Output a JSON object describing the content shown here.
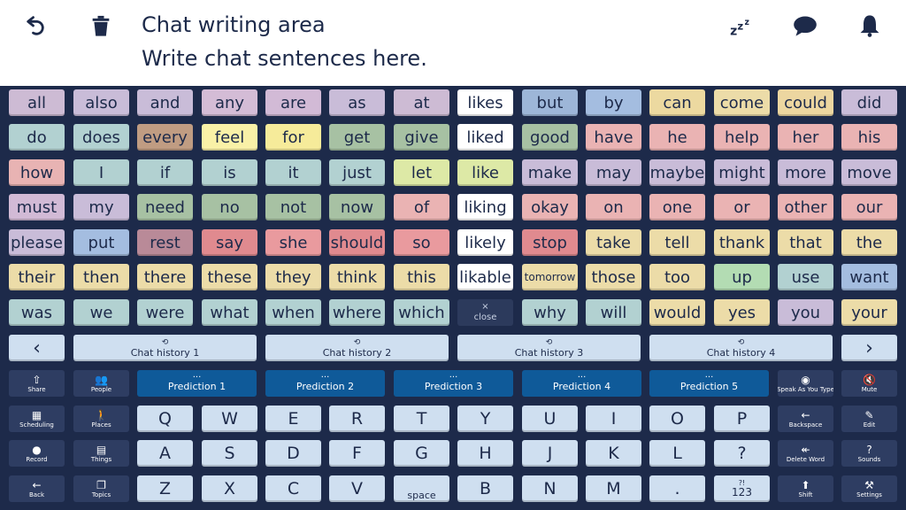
{
  "topbar": {
    "title": "Chat writing area",
    "text": "Write chat sentences here.",
    "icons": [
      "undo-icon",
      "trash-icon",
      "sleep-icon",
      "speech-bubble-icon",
      "bell-icon"
    ],
    "icon_color": "#1d2a4a"
  },
  "word_grid": {
    "rows": [
      [
        "all",
        "also",
        "and",
        "any",
        "are",
        "as",
        "at",
        "likes",
        "but",
        "by",
        "can",
        "come",
        "could",
        "did"
      ],
      [
        "do",
        "does",
        "every",
        "feel",
        "for",
        "get",
        "give",
        "liked",
        "good",
        "have",
        "he",
        "help",
        "her",
        "his"
      ],
      [
        "how",
        "I",
        "if",
        "is",
        "it",
        "just",
        "let",
        "like",
        "make",
        "may",
        "maybe",
        "might",
        "more",
        "move"
      ],
      [
        "must",
        "my",
        "need",
        "no",
        "not",
        "now",
        "of",
        "liking",
        "okay",
        "on",
        "one",
        "or",
        "other",
        "our"
      ],
      [
        "please",
        "put",
        "rest",
        "say",
        "she",
        "should",
        "so",
        "likely",
        "stop",
        "take",
        "tell",
        "thank",
        "that",
        "the"
      ],
      [
        "their",
        "then",
        "there",
        "these",
        "they",
        "think",
        "this",
        "likable",
        "tomorrow",
        "those",
        "too",
        "up",
        "use",
        "want"
      ],
      [
        "was",
        "we",
        "were",
        "what",
        "when",
        "where",
        "which",
        "",
        "why",
        "will",
        "would",
        "yes",
        "you",
        "your"
      ]
    ],
    "colors": [
      [
        "#cdbbd4",
        "#c9bcd8",
        "#c9bcd8",
        "#d4bcd6",
        "#d2bad6",
        "#c9bcd8",
        "#cdbbd4",
        "#ffffff",
        "#9db6d8",
        "#a4bde0",
        "#ecd9a0",
        "#ecdca8",
        "#ecd6a0",
        "#c9bcd8"
      ],
      [
        "#b2d1d1",
        "#b2d1d1",
        "#c09c82",
        "#f9f1a7",
        "#f6eb9a",
        "#a7c1a3",
        "#a7c1a3",
        "#ffffff",
        "#a7c1a3",
        "#eab3b3",
        "#eab3b3",
        "#eab3b3",
        "#eab3b3",
        "#eab3b3"
      ],
      [
        "#e8b3b3",
        "#b2d1d1",
        "#b2d1d1",
        "#b2d1d1",
        "#b2d1d1",
        "#b2d1d1",
        "#dde9a6",
        "#dde9a6",
        "#c9bcd8",
        "#c9bcd8",
        "#c9bcd8",
        "#c9bcd8",
        "#c9bcd8",
        "#c9bcd8"
      ],
      [
        "#d2bad6",
        "#c9bcd8",
        "#a7c1a3",
        "#a7c1a3",
        "#a7c1a3",
        "#a7c1a3",
        "#eab3b3",
        "#ffffff",
        "#eab3b3",
        "#eab3b3",
        "#eab3b3",
        "#eab3b3",
        "#eab3b3",
        "#eab3b3"
      ],
      [
        "#c9bcd8",
        "#a4bde0",
        "#b98a98",
        "#e08a8f",
        "#e99a9e",
        "#e08a8f",
        "#e99a9e",
        "#ffffff",
        "#e08a8f",
        "#ecdca8",
        "#ecdca8",
        "#ecdca8",
        "#ecdca8",
        "#ecdca8"
      ],
      [
        "#ecdca8",
        "#ecdca8",
        "#ecdca8",
        "#ecdca8",
        "#ecdca8",
        "#ecdca8",
        "#ecdca8",
        "#ffffff",
        "#ecdca8",
        "#ecdca8",
        "#ecdca8",
        "#b3dcb3",
        "#b2d1d1",
        "#a4bde0"
      ],
      [
        "#b2d1d1",
        "#b2d1d1",
        "#b2d1d1",
        "#b2d1d1",
        "#b2d1d1",
        "#b2d1d1",
        "#b2d1d1",
        "",
        "#b2d1d1",
        "#b2d1d1",
        "#ecdca8",
        "#ecdca8",
        "#c9bcd8",
        "#ecdca8"
      ]
    ],
    "close_label": "close",
    "close_icon": "close-icon"
  },
  "history": {
    "items": [
      "Chat history 1",
      "Chat history 2",
      "Chat history 3",
      "Chat history 4"
    ],
    "icon": "history-icon",
    "prev_label": "‹",
    "next_label": "›"
  },
  "functions": {
    "left_col1": [
      {
        "label": "Share",
        "icon": "share-icon",
        "glyph": "⇧"
      },
      {
        "label": "Scheduling",
        "icon": "calendar-icon",
        "glyph": "▦"
      },
      {
        "label": "Record",
        "icon": "microphone-icon",
        "glyph": "●"
      },
      {
        "label": "Back",
        "icon": "back-arrow-icon",
        "glyph": "←"
      }
    ],
    "left_col2": [
      {
        "label": "People",
        "icon": "people-icon",
        "glyph": "👥"
      },
      {
        "label": "Places",
        "icon": "walking-person-icon",
        "glyph": "🚶"
      },
      {
        "label": "Things",
        "icon": "basket-icon",
        "glyph": "▤"
      },
      {
        "label": "Topics",
        "icon": "topics-icon",
        "glyph": "❐"
      }
    ],
    "right_col1": [
      {
        "label": "Speak As You Type",
        "icon": "speak-as-you-type-icon",
        "glyph": "◉"
      },
      {
        "label": "Backspace",
        "icon": "backspace-icon",
        "glyph": "←"
      },
      {
        "label": "Delete Word",
        "icon": "delete-word-icon",
        "glyph": "↞"
      },
      {
        "label": "Shift",
        "icon": "shift-icon",
        "glyph": "⬆"
      }
    ],
    "right_col2": [
      {
        "label": "Mute",
        "icon": "mute-icon",
        "glyph": "🔇"
      },
      {
        "label": "Edit",
        "icon": "pencil-icon",
        "glyph": "✎"
      },
      {
        "label": "Sounds",
        "icon": "question-sound-icon",
        "glyph": "?"
      },
      {
        "label": "Settings",
        "icon": "settings-icon",
        "glyph": "⚒"
      }
    ]
  },
  "predictions": {
    "items": [
      "Prediction 1",
      "Prediction 2",
      "Prediction 3",
      "Prediction 4",
      "Prediction 5"
    ],
    "dots": "···",
    "color": "#0f5a99"
  },
  "keyboard": {
    "rows": [
      [
        "Q",
        "W",
        "E",
        "R",
        "T",
        "Y",
        "U",
        "I",
        "O",
        "P"
      ],
      [
        "A",
        "S",
        "D",
        "F",
        "G",
        "H",
        "J",
        "K",
        "L",
        "?"
      ],
      [
        "Z",
        "X",
        "C",
        "V",
        "space",
        "B",
        "N",
        "M",
        ".",
        "123"
      ]
    ],
    "number_key_sup": "?!"
  }
}
